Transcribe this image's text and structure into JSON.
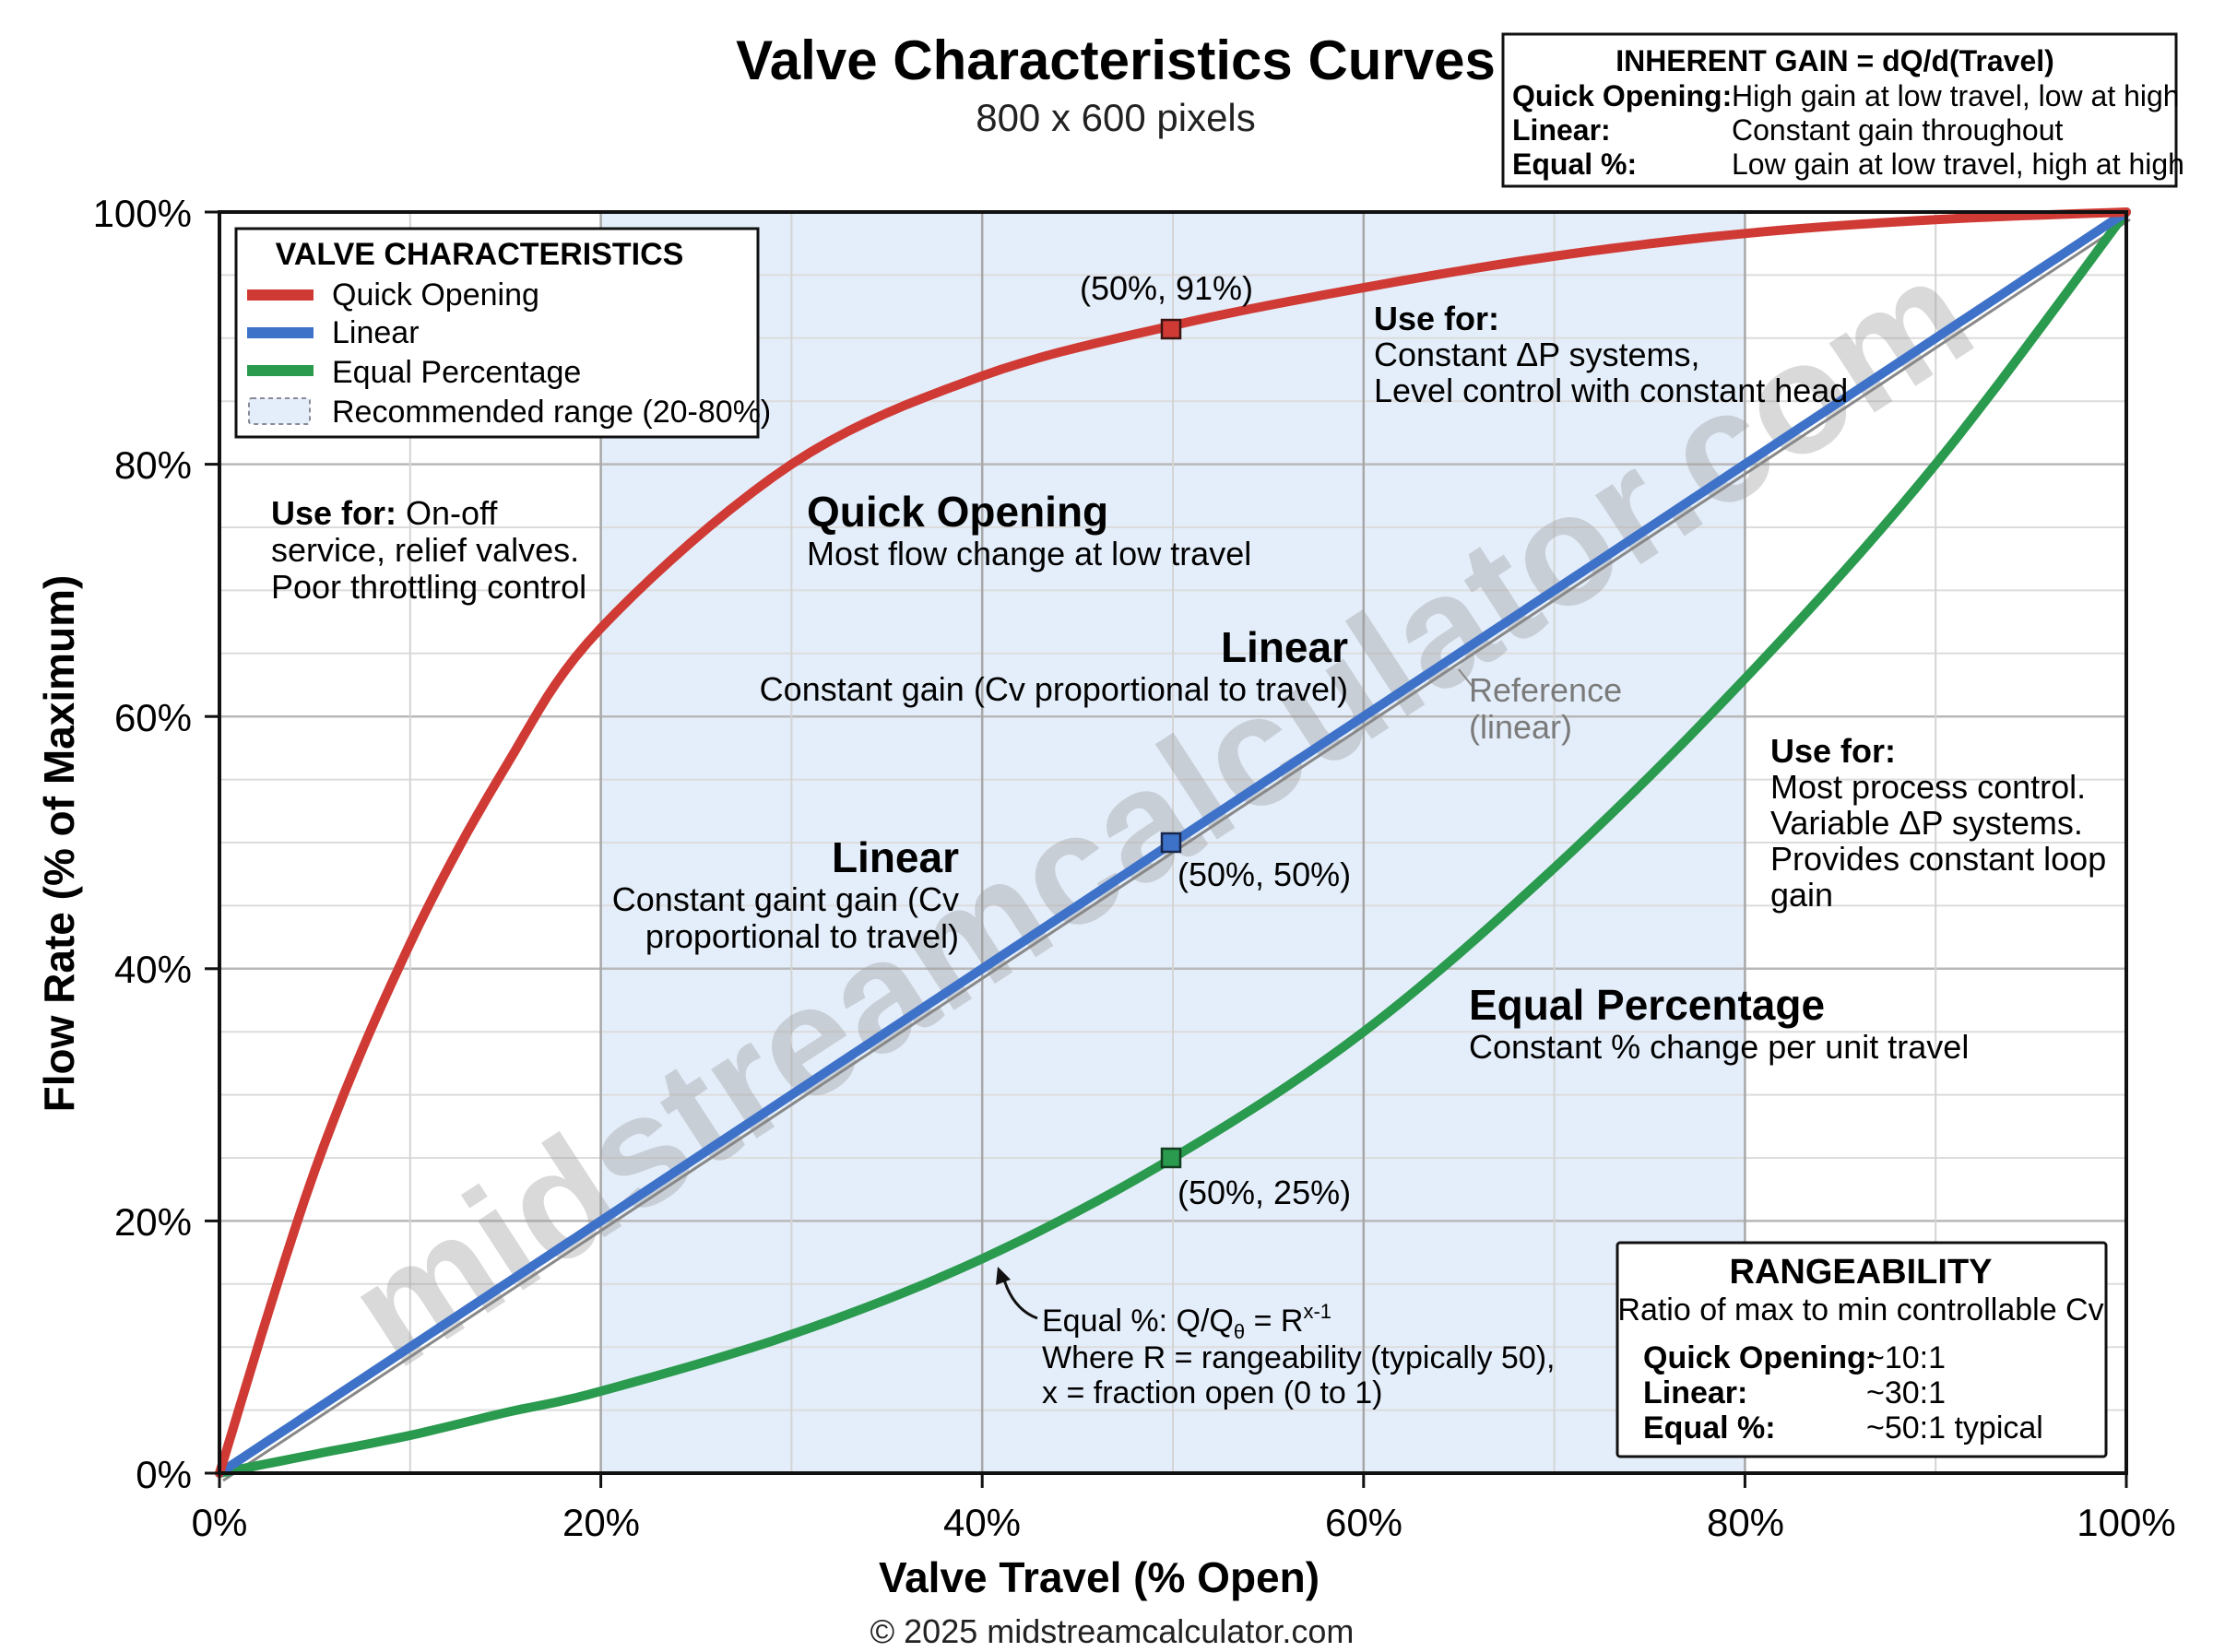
{
  "header": {
    "title": "Valve Characteristics Curves",
    "subtitle": "800 x 600 pixels"
  },
  "gain_box": {
    "title": "INHERENT GAIN = dQ/d(Travel)",
    "rows": [
      {
        "label": "Quick Opening:",
        "value": "High gain at low travel, low at high"
      },
      {
        "label": "Linear:",
        "value": "Constant gain throughout"
      },
      {
        "label": "Equal %:",
        "value": "Low gain at low travel, high at high"
      }
    ]
  },
  "legend": {
    "title": "VALVE CHARACTERISTICS",
    "items": [
      {
        "label": "Quick Opening",
        "swatch": "line",
        "color": "#d03a35"
      },
      {
        "label": "Linear",
        "swatch": "line",
        "color": "#3e72c9"
      },
      {
        "label": "Equal Percentage",
        "swatch": "line",
        "color": "#2a9a4e"
      },
      {
        "label": "Recommended range (20-80%)",
        "swatch": "band",
        "color": "#e4eefa"
      }
    ]
  },
  "annotations": {
    "qo_use": {
      "bold": "Use for:",
      "line1": " On-off",
      "line2": "service, relief valves.",
      "line3": "Poor throttling control"
    },
    "qo_title": "Quick Opening",
    "qo_desc": "Most flow change at low travel",
    "qo_point": "(50%, 91%)",
    "lin_use": {
      "bold": "Use for:",
      "line1": "Constant ΔP systems,",
      "line2": "Level control with constant head"
    },
    "lin_title_upper": "Linear",
    "lin_desc_upper": "Constant gain (Cv proportional to travel)",
    "lin_title_lower": "Linear",
    "lin_desc_lower_1": "Constant gaint gain (Cv",
    "lin_desc_lower_2": "proportional to travel)",
    "lin_point": "(50%, 50%)",
    "reference_1": "Reference",
    "reference_2": "(linear)",
    "eq_use": {
      "bold": "Use for:",
      "line1": "Most process control.",
      "line2": "Variable ΔP systems.",
      "line3": "Provides constant loop",
      "line4": "gain"
    },
    "eq_title": "Equal Percentage",
    "eq_desc": "Constant % change per unit travel",
    "eq_point": "(50%, 25%)",
    "formula_1_a": "Equal %: Q/Q",
    "formula_1_sub": "θ",
    "formula_1_b": " = R",
    "formula_1_sup": "x-1",
    "formula_2": "Where R = rangeability (typically 50),",
    "formula_3": "x = fraction open (0 to 1)"
  },
  "rangeability": {
    "title": "RANGEABILITY",
    "subtitle": "Ratio of max to min controllable Cv",
    "rows": [
      {
        "label": "Quick Opening:",
        "value": "~10:1"
      },
      {
        "label": "Linear:",
        "value": "~30:1"
      },
      {
        "label": "Equal %:",
        "value": "~50:1 typical"
      }
    ]
  },
  "axes": {
    "xlabel": "Valve Travel (% Open)",
    "ylabel": "Flow Rate (% of Maximum)",
    "xticks": [
      "0%",
      "20%",
      "40%",
      "60%",
      "80%",
      "100%"
    ],
    "yticks": [
      "0%",
      "20%",
      "40%",
      "60%",
      "80%",
      "100%"
    ]
  },
  "watermark": "midstreamcalculator.com",
  "footer": "© 2025 midstreamcalculator.com",
  "colors": {
    "quick_opening": "#d03a35",
    "linear": "#3e72c9",
    "equal_percentage": "#2a9a4e",
    "reference": "#888888",
    "band": "#e4eefa"
  },
  "chart_data": {
    "type": "line",
    "title": "Valve Characteristics Curves",
    "subtitle": "800 x 600 pixels",
    "xlabel": "Valve Travel (% Open)",
    "ylabel": "Flow Rate (% of Maximum)",
    "xlim": [
      0,
      100
    ],
    "ylim": [
      0,
      100
    ],
    "x": [
      0,
      5,
      10,
      15,
      20,
      30,
      40,
      50,
      60,
      70,
      80,
      90,
      100
    ],
    "series": [
      {
        "name": "Quick Opening",
        "color": "#d03a35",
        "values": [
          0,
          24,
          42,
          56,
          67,
          80,
          87,
          91,
          94,
          96.5,
          98.3,
          99.4,
          100
        ]
      },
      {
        "name": "Linear",
        "color": "#3e72c9",
        "values": [
          0,
          5,
          10,
          15,
          20,
          30,
          40,
          50,
          60,
          70,
          80,
          90,
          100
        ]
      },
      {
        "name": "Equal Percentage",
        "color": "#2a9a4e",
        "values": [
          0,
          1.5,
          3,
          4.8,
          6.5,
          11,
          17,
          25,
          35,
          48,
          63,
          80,
          100
        ]
      },
      {
        "name": "Reference (linear)",
        "color": "#888888",
        "values": [
          0,
          5,
          10,
          15,
          20,
          30,
          40,
          50,
          60,
          70,
          80,
          90,
          100
        ]
      }
    ],
    "highlighted_points": [
      {
        "series": "Quick Opening",
        "x": 50,
        "y": 91,
        "label": "(50%, 91%)"
      },
      {
        "series": "Linear",
        "x": 50,
        "y": 50,
        "label": "(50%, 50%)"
      },
      {
        "series": "Equal Percentage",
        "x": 50,
        "y": 25,
        "label": "(50%, 25%)"
      }
    ],
    "shaded_region": {
      "x_from": 20,
      "x_to": 80,
      "label": "Recommended range (20-80%)"
    },
    "grid": {
      "major_x_step": 10,
      "major_y_step": 20,
      "minor_y_step": 5
    },
    "legend_position": "upper left",
    "legend": [
      "Quick Opening",
      "Linear",
      "Equal Percentage",
      "Recommended range (20-80%)"
    ],
    "xticks": [
      "0%",
      "20%",
      "40%",
      "60%",
      "80%",
      "100%"
    ],
    "yticks": [
      "0%",
      "20%",
      "40%",
      "60%",
      "80%",
      "100%"
    ]
  }
}
